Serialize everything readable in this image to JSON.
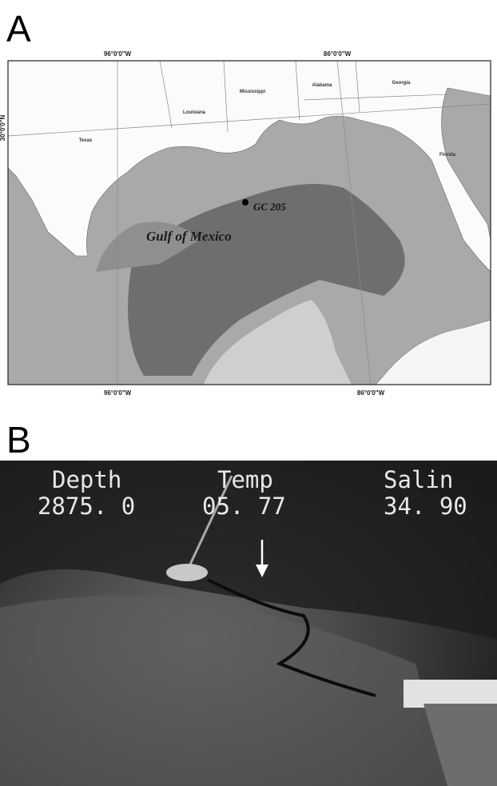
{
  "panel_a": {
    "label": "A",
    "longitude_top": [
      "96°0'0\"W",
      "86°0'0\"W"
    ],
    "longitude_bottom": [
      "96°0'0\"W",
      "86°0'0\"W"
    ],
    "latitude": "30°0'0\"N",
    "states": [
      "Texas",
      "Louisiana",
      "Mississippi",
      "Alabama",
      "Georgia",
      "Florida"
    ],
    "site": "GC 205",
    "water_body": "Gulf of Mexico"
  },
  "panel_b": {
    "label": "B",
    "overlay": [
      {
        "name": "Depth",
        "value": "2875. 0"
      },
      {
        "name": "Temp",
        "value": "05. 77"
      },
      {
        "name": "Salin",
        "value": "34. 90"
      }
    ]
  }
}
